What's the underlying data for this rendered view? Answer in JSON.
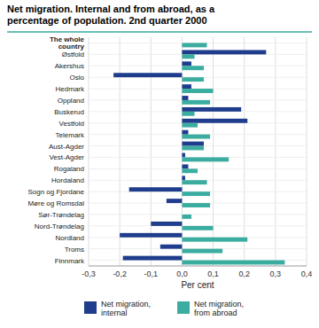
{
  "chart_data": {
    "type": "bar",
    "orientation": "horizontal",
    "title": "Net migration. Internal and from abroad, as a\npercentage of population. 2nd quarter 2000",
    "categories": [
      "The whole\ncountry",
      "Østfold",
      "Akershus",
      "Oslo",
      "Hedmark",
      "Oppland",
      "Buskerud",
      "Vestfold",
      "Telemark",
      "Aust-Agder",
      "Vest-Agder",
      "Rogaland",
      "Hordaland",
      "Sogn og Fjordane",
      "Møre og Romsdal",
      "Sør-Trøndelag",
      "Nord-Trøndelag",
      "Nordland",
      "Troms",
      "Finnmark"
    ],
    "series": [
      {
        "name": "Net migration,\ninternal",
        "color": "#1f3d8c",
        "values": [
          0.0,
          0.27,
          0.03,
          -0.22,
          0.03,
          0.02,
          0.19,
          0.21,
          0.02,
          0.07,
          0.01,
          0.02,
          0.01,
          -0.17,
          -0.05,
          0.0,
          -0.1,
          -0.2,
          -0.07,
          -0.19
        ]
      },
      {
        "name": "Net migration,\nfrom abroad",
        "color": "#3aada0",
        "values": [
          0.08,
          0.04,
          0.07,
          0.07,
          0.1,
          0.09,
          0.04,
          0.05,
          0.09,
          0.07,
          0.15,
          0.05,
          0.08,
          0.09,
          0.09,
          0.03,
          0.1,
          0.21,
          0.13,
          0.33
        ]
      }
    ],
    "xlabel": "Per cent",
    "xlim": [
      -0.3,
      0.4
    ],
    "xticks": [
      {
        "value": -0.3,
        "label": "-0,3"
      },
      {
        "value": -0.2,
        "label": "-0,2"
      },
      {
        "value": -0.1,
        "label": "-0,1"
      },
      {
        "value": 0.0,
        "label": "0,0"
      },
      {
        "value": 0.1,
        "label": "0,1"
      },
      {
        "value": 0.2,
        "label": "0,2"
      },
      {
        "value": 0.3,
        "label": "0,3"
      },
      {
        "value": 0.4,
        "label": "0,4"
      }
    ],
    "grid": true,
    "legend": "bottom"
  }
}
